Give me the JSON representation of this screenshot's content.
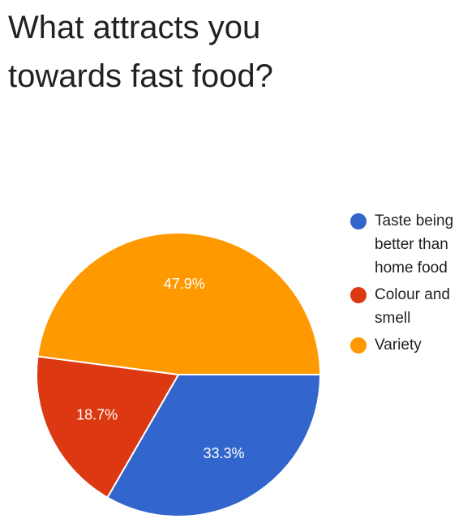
{
  "title": "What attracts you towards fast food?",
  "chart_data": {
    "type": "pie",
    "title": "What attracts you towards fast food?",
    "categories": [
      "Taste being better than home food",
      "Colour and smell",
      "Variety"
    ],
    "values": [
      33.3,
      18.7,
      47.9
    ],
    "labels": [
      "33.3%",
      "18.7%",
      "47.9%"
    ],
    "colors": [
      "#3366cc",
      "#dc3912",
      "#ff9900"
    ],
    "legend": "right",
    "start": "3 o'clock",
    "direction": "clockwise"
  }
}
